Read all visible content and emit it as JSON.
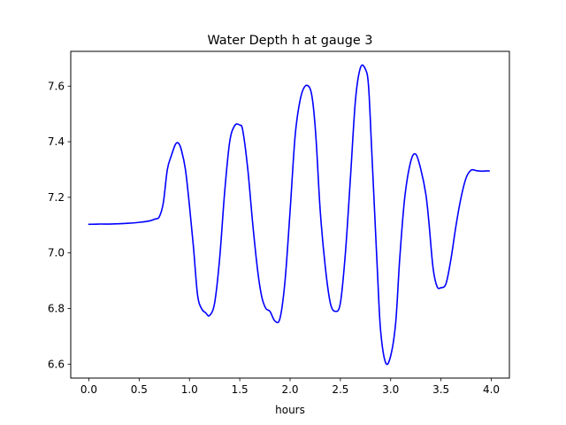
{
  "chart_data": {
    "type": "line",
    "title": "Water Depth h at gauge 3",
    "xlabel": "hours",
    "ylabel": "",
    "xlim": [
      -0.18,
      4.18
    ],
    "ylim": [
      6.55,
      7.725
    ],
    "grid": false,
    "xticks": [
      0.0,
      0.5,
      1.0,
      1.5,
      2.0,
      2.5,
      3.0,
      3.5,
      4.0
    ],
    "xtick_labels": [
      "0.0",
      "0.5",
      "1.0",
      "1.5",
      "2.0",
      "2.5",
      "3.0",
      "3.5",
      "4.0"
    ],
    "yticks": [
      6.6,
      6.8,
      7.0,
      7.2,
      7.4,
      7.6
    ],
    "ytick_labels": [
      "6.6",
      "6.8",
      "7.0",
      "7.2",
      "7.4",
      "7.6"
    ],
    "series": [
      {
        "color": "#0000ff",
        "x": [
          0.0,
          0.1,
          0.2,
          0.3,
          0.4,
          0.5,
          0.6,
          0.66,
          0.7,
          0.74,
          0.78,
          0.82,
          0.86,
          0.89,
          0.92,
          0.96,
          1.0,
          1.04,
          1.08,
          1.12,
          1.16,
          1.2,
          1.25,
          1.3,
          1.35,
          1.4,
          1.45,
          1.5,
          1.53,
          1.58,
          1.63,
          1.68,
          1.72,
          1.76,
          1.8,
          1.85,
          1.9,
          1.95,
          2.0,
          2.05,
          2.1,
          2.15,
          2.2,
          2.23,
          2.26,
          2.3,
          2.35,
          2.4,
          2.45,
          2.5,
          2.55,
          2.6,
          2.65,
          2.7,
          2.75,
          2.78,
          2.81,
          2.84,
          2.87,
          2.9,
          2.95,
          3.0,
          3.05,
          3.09,
          3.14,
          3.2,
          3.25,
          3.3,
          3.35,
          3.38,
          3.42,
          3.46,
          3.5,
          3.55,
          3.6,
          3.65,
          3.7,
          3.75,
          3.8,
          3.85,
          3.9,
          3.95,
          3.98
        ],
        "y": [
          7.103,
          7.104,
          7.104,
          7.105,
          7.107,
          7.11,
          7.115,
          7.122,
          7.13,
          7.18,
          7.3,
          7.35,
          7.39,
          7.395,
          7.37,
          7.3,
          7.17,
          7.02,
          6.85,
          6.8,
          6.785,
          6.775,
          6.82,
          6.98,
          7.22,
          7.4,
          7.458,
          7.46,
          7.44,
          7.3,
          7.1,
          6.93,
          6.84,
          6.8,
          6.79,
          6.755,
          6.765,
          6.9,
          7.15,
          7.42,
          7.55,
          7.6,
          7.59,
          7.53,
          7.4,
          7.15,
          6.95,
          6.82,
          6.79,
          6.82,
          7.0,
          7.27,
          7.55,
          7.667,
          7.66,
          7.6,
          7.38,
          7.15,
          6.92,
          6.72,
          6.605,
          6.63,
          6.75,
          6.98,
          7.2,
          7.33,
          7.355,
          7.3,
          7.21,
          7.11,
          6.95,
          6.88,
          6.875,
          6.89,
          6.98,
          7.1,
          7.2,
          7.27,
          7.298,
          7.296,
          7.294,
          7.295,
          7.295
        ]
      }
    ]
  }
}
